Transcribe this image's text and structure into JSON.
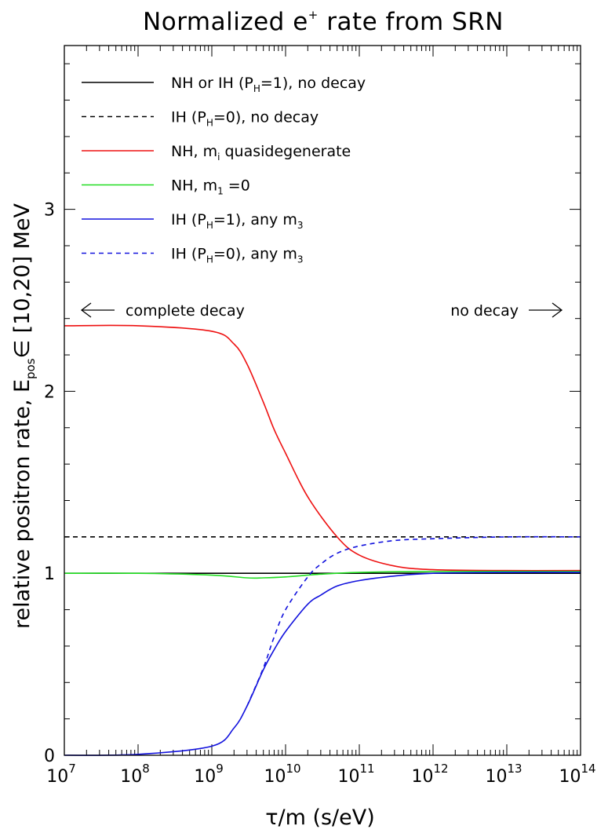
{
  "chart_data": {
    "type": "line",
    "title": "Normalized e",
    "title_sup": "+",
    "title_rest": " rate from SRN",
    "xlabel": "τ/m  (s/eV)",
    "ylabel": "relative positron rate, E",
    "ylabel_sub": "pos",
    "ylabel_rest": "∈ [10,20] MeV",
    "x_scale": "log",
    "xlim": [
      10000000,
      100000000000000
    ],
    "ylim": [
      0,
      3.9
    ],
    "x_ticks": [
      {
        "base": "10",
        "exp": "7",
        "value": 10000000
      },
      {
        "base": "10",
        "exp": "8",
        "value": 100000000
      },
      {
        "base": "10",
        "exp": "9",
        "value": 1000000000
      },
      {
        "base": "10",
        "exp": "10",
        "value": 10000000000
      },
      {
        "base": "10",
        "exp": "11",
        "value": 100000000000
      },
      {
        "base": "10",
        "exp": "12",
        "value": 1000000000000
      },
      {
        "base": "10",
        "exp": "13",
        "value": 10000000000000
      },
      {
        "base": "10",
        "exp": "14",
        "value": 100000000000000
      }
    ],
    "y_ticks": [
      {
        "label": "0",
        "value": 0
      },
      {
        "label": "1",
        "value": 1
      },
      {
        "label": "2",
        "value": 2
      },
      {
        "label": "3",
        "value": 3
      }
    ],
    "annotations": [
      {
        "text": "complete decay",
        "arrow": "left"
      },
      {
        "text": "no decay",
        "arrow": "right"
      }
    ],
    "legend_position": "top-left",
    "series": [
      {
        "legend": {
          "pre": "NH or IH (P",
          "sub": "H",
          "post": "=1), no decay"
        },
        "color": "#000000",
        "dash": false,
        "x": [
          10000000,
          100000000000000
        ],
        "y": [
          1.0,
          1.0
        ]
      },
      {
        "legend": {
          "pre": "IH (P",
          "sub": "H",
          "post": "=0), no decay"
        },
        "color": "#000000",
        "dash": true,
        "x": [
          10000000,
          100000000000000
        ],
        "y": [
          1.2,
          1.2
        ]
      },
      {
        "legend": {
          "pre": "NH, m",
          "sub": "i",
          "post": " quasidegenerate"
        },
        "color": "#ee1111",
        "dash": false,
        "x": [
          10000000,
          100000000,
          1000000000,
          2000000000,
          3000000000,
          5000000000,
          7000000000,
          10000000000,
          20000000000,
          50000000000,
          100000000000,
          300000000000,
          1000000000000,
          10000000000000,
          100000000000000
        ],
        "y": [
          2.36,
          2.36,
          2.33,
          2.26,
          2.15,
          1.94,
          1.79,
          1.66,
          1.42,
          1.2,
          1.1,
          1.04,
          1.02,
          1.015,
          1.015
        ]
      },
      {
        "legend": {
          "pre": "NH, m",
          "sub": "1",
          "post": " =0"
        },
        "color": "#22dd22",
        "dash": false,
        "x": [
          10000000,
          100000000,
          1000000000,
          3000000000,
          5000000000,
          10000000000,
          30000000000,
          100000000000,
          1000000000000,
          100000000000000
        ],
        "y": [
          1.0,
          1.0,
          0.99,
          0.975,
          0.975,
          0.98,
          0.995,
          1.005,
          1.01,
          1.01
        ]
      },
      {
        "legend": {
          "pre": "IH (P",
          "sub": "H",
          "post": "=1), any m",
          "sub2": "3"
        },
        "color": "#1111dd",
        "dash": false,
        "x": [
          10000000,
          100000000,
          1000000000,
          2000000000,
          3000000000,
          5000000000,
          7000000000,
          10000000000,
          20000000000,
          30000000000,
          50000000000,
          100000000000,
          300000000000,
          1000000000000,
          10000000000000,
          100000000000000
        ],
        "y": [
          0.0,
          0.005,
          0.05,
          0.15,
          0.27,
          0.47,
          0.58,
          0.68,
          0.83,
          0.88,
          0.93,
          0.96,
          0.985,
          1.0,
          1.005,
          1.005
        ]
      },
      {
        "legend": {
          "pre": "IH (P",
          "sub": "H",
          "post": "=0), any m",
          "sub2": "3"
        },
        "color": "#1111dd",
        "dash": true,
        "x": [
          3000000000,
          5000000000,
          7000000000,
          10000000000,
          20000000000,
          30000000000,
          50000000000,
          100000000000,
          300000000000,
          1000000000000,
          10000000000000,
          100000000000000
        ],
        "y": [
          0.27,
          0.48,
          0.65,
          0.8,
          0.98,
          1.05,
          1.11,
          1.15,
          1.18,
          1.19,
          1.2,
          1.2
        ]
      }
    ]
  }
}
